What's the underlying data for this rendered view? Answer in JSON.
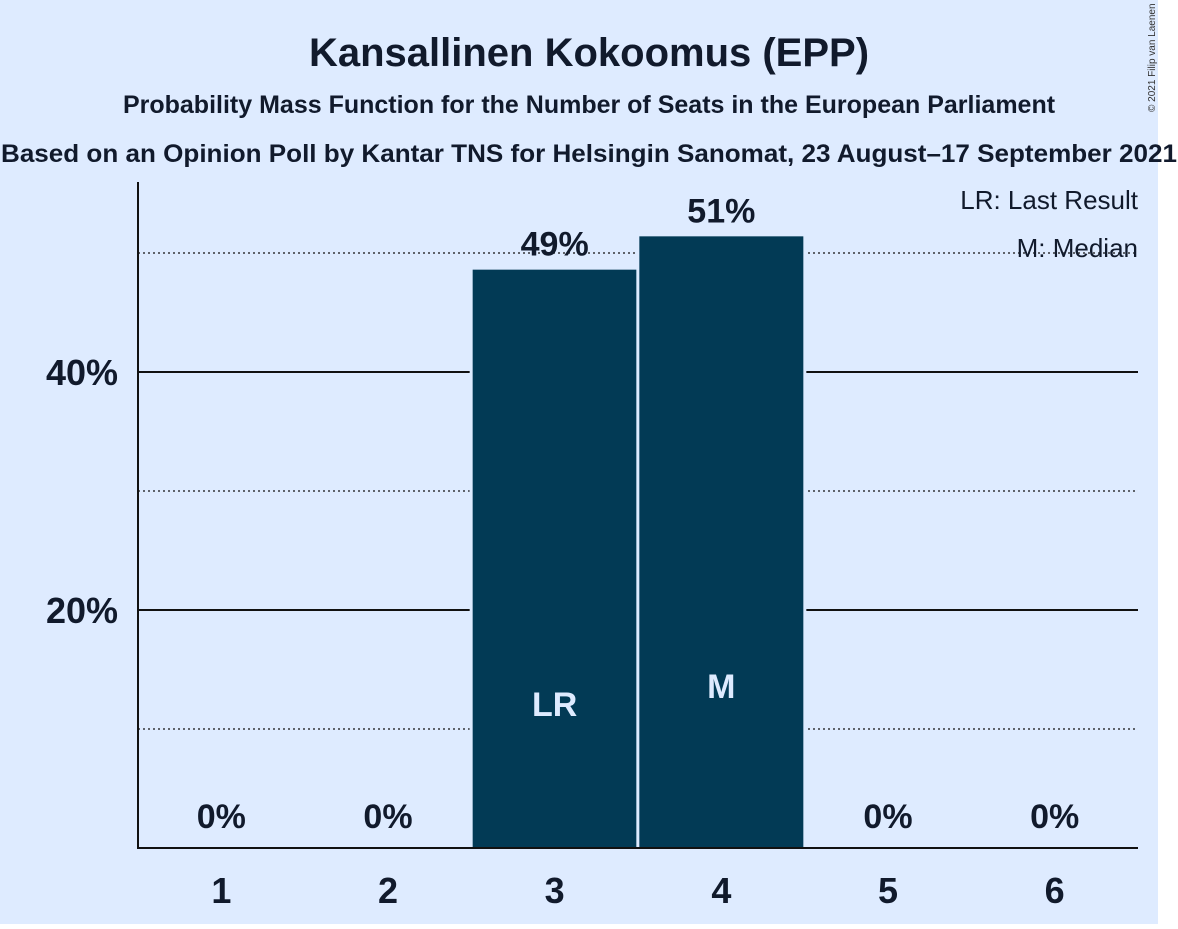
{
  "chart_data": {
    "type": "bar",
    "title": "Kansallinen Kokoomus (EPP)",
    "subtitle": "Probability Mass Function for the Number of Seats in the European Parliament",
    "subtitle2": "Based on an Opinion Poll by Kantar TNS for Helsingin Sanomat, 23 August–17 September 2021",
    "copyright": "© 2021 Filip van Laenen",
    "categories": [
      "1",
      "2",
      "3",
      "4",
      "5",
      "6"
    ],
    "values": [
      0,
      0,
      48.6,
      51.4,
      0,
      0
    ],
    "value_labels": [
      "0%",
      "0%",
      "49%",
      "51%",
      "0%",
      "0%"
    ],
    "bar_markers": [
      "",
      "",
      "LR",
      "M",
      "",
      ""
    ],
    "ylim": [
      0,
      56
    ],
    "y_ticks": [
      {
        "value": 20,
        "label": "20%"
      },
      {
        "value": 40,
        "label": "40%"
      }
    ],
    "y_minor_gridlines": [
      10,
      30,
      50
    ],
    "legend": [
      "LR: Last Result",
      "M: Median"
    ],
    "legend_position": "top-right",
    "colors": {
      "background": "#deebff",
      "bar": "#023a55",
      "text": "#111a2c",
      "bar_text": "#deebff"
    }
  }
}
